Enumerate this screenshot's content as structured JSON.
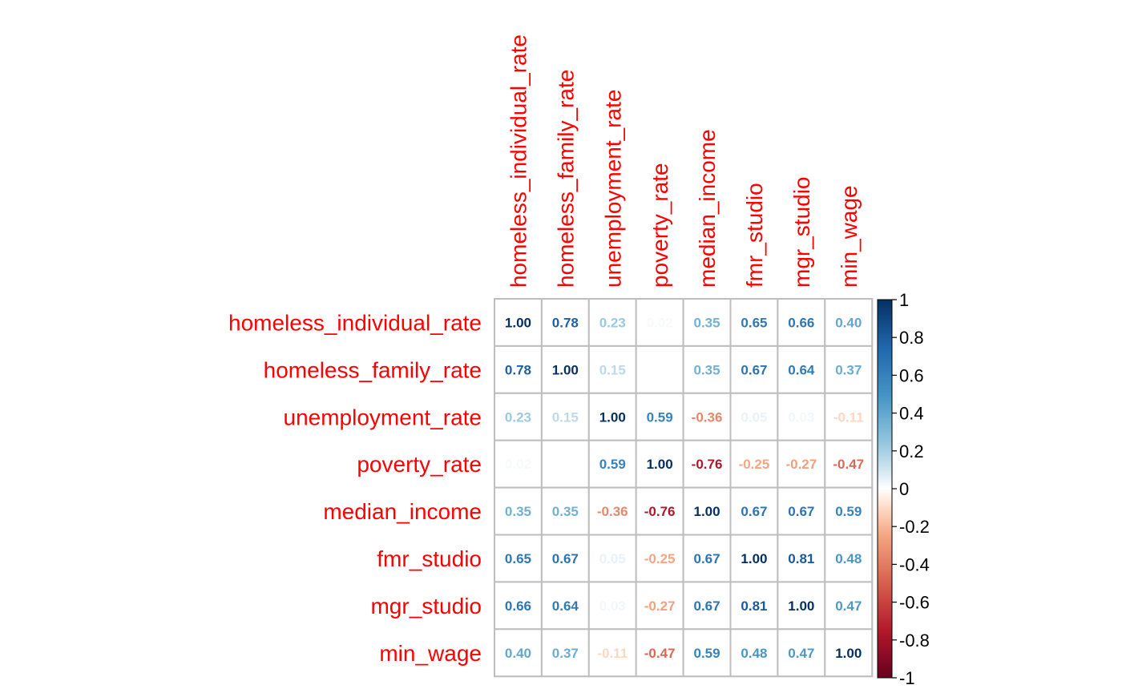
{
  "chart_data": {
    "type": "heatmap",
    "title": "",
    "variables": [
      "homeless_individual_rate",
      "homeless_family_rate",
      "unemployment_rate",
      "poverty_rate",
      "median_income",
      "fmr_studio",
      "mgr_studio",
      "min_wage"
    ],
    "matrix": [
      [
        1.0,
        0.78,
        0.23,
        0.02,
        0.35,
        0.65,
        0.66,
        0.4
      ],
      [
        0.78,
        1.0,
        0.15,
        0.0,
        0.35,
        0.67,
        0.64,
        0.37
      ],
      [
        0.23,
        0.15,
        1.0,
        0.59,
        -0.36,
        0.05,
        0.03,
        -0.11
      ],
      [
        0.02,
        0.0,
        0.59,
        1.0,
        -0.76,
        -0.25,
        -0.27,
        -0.47
      ],
      [
        0.35,
        0.35,
        -0.36,
        -0.76,
        1.0,
        0.67,
        0.67,
        0.59
      ],
      [
        0.65,
        0.67,
        0.05,
        -0.25,
        0.67,
        1.0,
        0.81,
        0.48
      ],
      [
        0.66,
        0.64,
        0.03,
        -0.27,
        0.67,
        0.81,
        1.0,
        0.47
      ],
      [
        0.4,
        0.37,
        -0.11,
        -0.47,
        0.59,
        0.48,
        0.47,
        1.0
      ]
    ],
    "value_labels": [
      [
        "1.00",
        "0.78",
        "0.23",
        "0.02",
        "0.35",
        "0.65",
        "0.66",
        "0.40"
      ],
      [
        "0.78",
        "1.00",
        "0.15",
        "",
        "0.35",
        "0.67",
        "0.64",
        "0.37"
      ],
      [
        "0.23",
        "0.15",
        "1.00",
        "0.59",
        "-0.36",
        "0.05",
        "0.03",
        "-0.11"
      ],
      [
        "0.02",
        "",
        "0.59",
        "1.00",
        "-0.76",
        "-0.25",
        "-0.27",
        "-0.47"
      ],
      [
        "0.35",
        "0.35",
        "-0.36",
        "-0.76",
        "1.00",
        "0.67",
        "0.67",
        "0.59"
      ],
      [
        "0.65",
        "0.67",
        "0.05",
        "-0.25",
        "0.67",
        "1.00",
        "0.81",
        "0.48"
      ],
      [
        "0.66",
        "0.64",
        "0.03",
        "-0.27",
        "0.67",
        "0.81",
        "1.00",
        "0.47"
      ],
      [
        "0.40",
        "0.37",
        "-0.11",
        "-0.47",
        "0.59",
        "0.48",
        "0.47",
        "1.00"
      ]
    ],
    "color_scale": {
      "range": [
        -1,
        1
      ],
      "ticks": [
        1,
        0.8,
        0.6,
        0.4,
        0.2,
        0,
        -0.2,
        -0.4,
        -0.6,
        -0.8,
        -1
      ],
      "tick_labels": [
        "1",
        "0.8",
        "0.6",
        "0.4",
        "0.2",
        "0",
        "-0.2",
        "-0.4",
        "-0.6",
        "-0.8",
        "-1"
      ],
      "stops": [
        {
          "value": -1,
          "color": "#67001F"
        },
        {
          "value": -0.75,
          "color": "#B2182B"
        },
        {
          "value": -0.5,
          "color": "#D6604D"
        },
        {
          "value": -0.25,
          "color": "#F4A582"
        },
        {
          "value": -0.1,
          "color": "#FDDBC7"
        },
        {
          "value": 0,
          "color": "#FFFFFF"
        },
        {
          "value": 0.1,
          "color": "#D1E5F0"
        },
        {
          "value": 0.25,
          "color": "#92C5DE"
        },
        {
          "value": 0.5,
          "color": "#4393C3"
        },
        {
          "value": 0.75,
          "color": "#2166AC"
        },
        {
          "value": 1,
          "color": "#053061"
        }
      ]
    },
    "label_color": "#FF0000",
    "grid_color": "#BEBEBE"
  }
}
